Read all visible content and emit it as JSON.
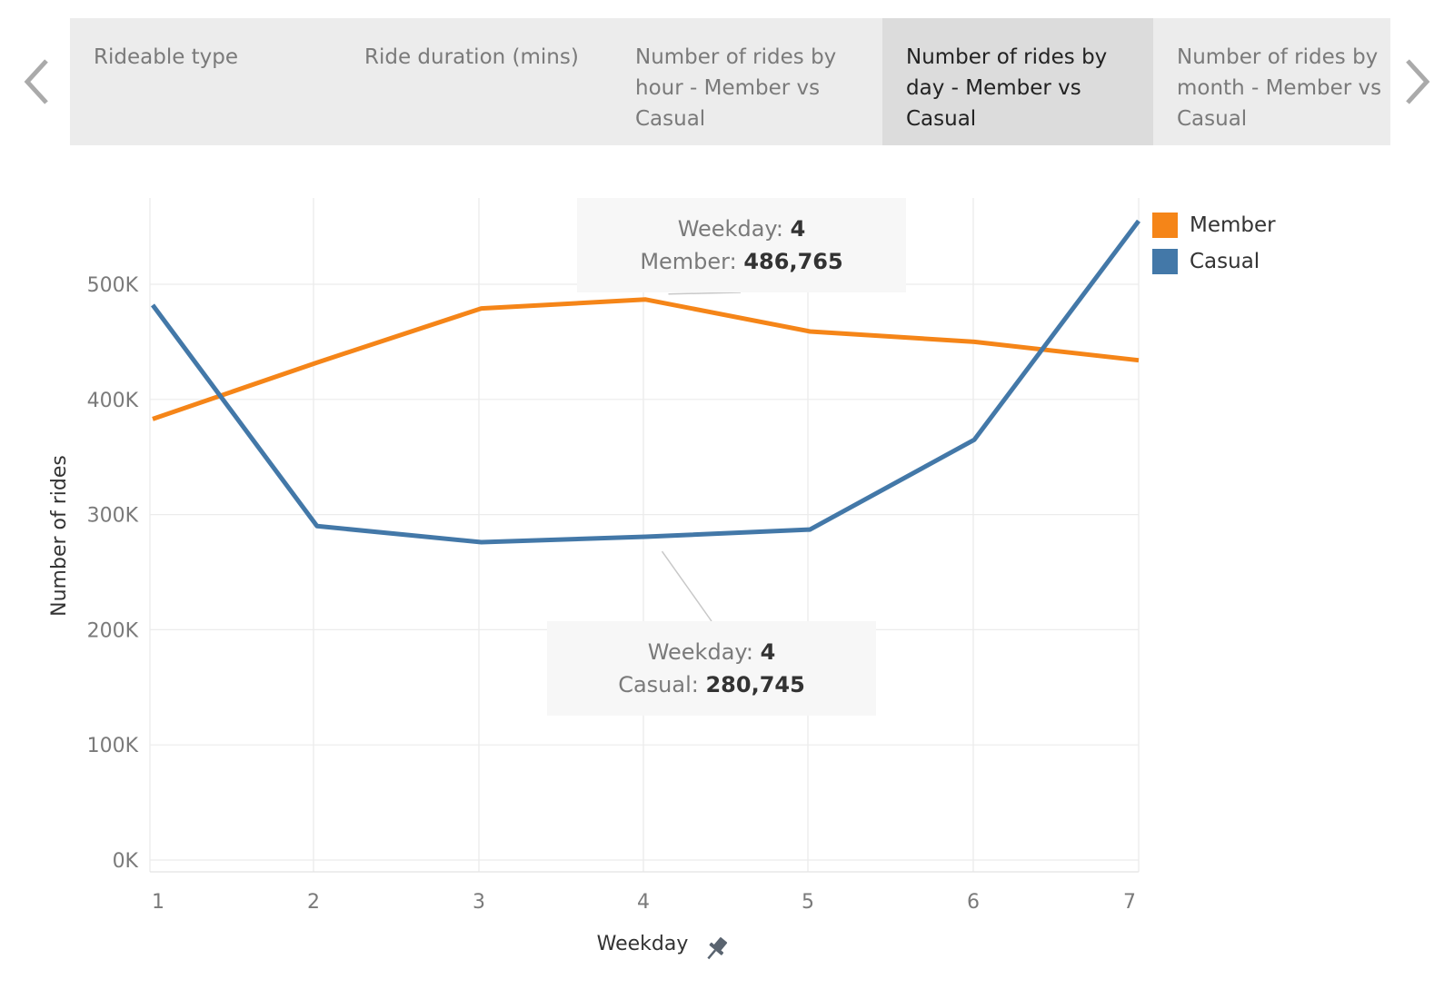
{
  "nav": {
    "prev_icon": "chevron-left-icon",
    "next_icon": "chevron-right-icon"
  },
  "tabs": [
    {
      "label": "Rideable type",
      "selected": false
    },
    {
      "label": "Ride duration (mins)",
      "selected": false
    },
    {
      "label": "Number of rides by hour - Member vs Casual",
      "selected": false
    },
    {
      "label": "Number of rides by day - Member vs Casual",
      "selected": true
    },
    {
      "label": "Number of rides by month - Member vs Casual",
      "selected": false
    }
  ],
  "colors": {
    "member": "#f58518",
    "casual": "#4378a8"
  },
  "tooltips": {
    "member": {
      "weekday_label": "Weekday:",
      "weekday_value": "4",
      "series_label": "Member:",
      "series_value": "486,765"
    },
    "casual": {
      "weekday_label": "Weekday:",
      "weekday_value": "4",
      "series_label": "Casual:",
      "series_value": "280,745"
    }
  },
  "chart_data": {
    "type": "line",
    "title": "",
    "xlabel": "Weekday",
    "ylabel": "Number of rides",
    "x": [
      1,
      2,
      3,
      4,
      5,
      6,
      7
    ],
    "x_tick_labels": [
      "1",
      "2",
      "3",
      "4",
      "5",
      "6",
      "7"
    ],
    "y_ticks": [
      0,
      100000,
      200000,
      300000,
      400000,
      500000
    ],
    "y_tick_labels": [
      "0K",
      "100K",
      "200K",
      "300K",
      "400K",
      "500K"
    ],
    "ylim": [
      0,
      560000
    ],
    "grid": true,
    "legend_position": "top-right",
    "series": [
      {
        "name": "Member",
        "color": "#f58518",
        "values": [
          383000,
          432000,
          479000,
          486765,
          459000,
          450000,
          434000
        ]
      },
      {
        "name": "Casual",
        "color": "#4378a8",
        "values": [
          482000,
          290000,
          276000,
          280745,
          287000,
          365000,
          555000
        ]
      }
    ]
  }
}
